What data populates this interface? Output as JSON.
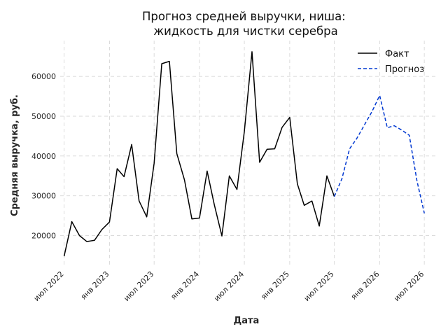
{
  "chart_data": {
    "type": "line",
    "title": "Прогноз средней выручки, ниша:\nжидкость для чистки серебра",
    "xlabel": "Дата",
    "ylabel": "Средняя выручка, руб.",
    "ylim": [
      12000,
      69000
    ],
    "xlim": [
      "2022-06-15",
      "2026-08-15"
    ],
    "x_ticks": [
      {
        "date": "2022-07-01",
        "label": "июл 2022"
      },
      {
        "date": "2023-01-01",
        "label": "янв 2023"
      },
      {
        "date": "2023-07-01",
        "label": "июл 2023"
      },
      {
        "date": "2024-01-01",
        "label": "янв 2024"
      },
      {
        "date": "2024-07-01",
        "label": "июл 2024"
      },
      {
        "date": "2025-01-01",
        "label": "янв 2025"
      },
      {
        "date": "2025-07-01",
        "label": "июл 2025"
      },
      {
        "date": "2026-01-01",
        "label": "янв 2026"
      },
      {
        "date": "2026-07-01",
        "label": "июл 2026"
      }
    ],
    "y_ticks": [
      20000,
      30000,
      40000,
      50000,
      60000
    ],
    "grid": true,
    "legend_position": "top-right",
    "series": [
      {
        "name": "Факт",
        "color": "#000000",
        "style": "solid",
        "points": [
          [
            "2022-07-01",
            14800
          ],
          [
            "2022-08-01",
            23500
          ],
          [
            "2022-09-01",
            20000
          ],
          [
            "2022-10-01",
            18500
          ],
          [
            "2022-11-01",
            18800
          ],
          [
            "2022-12-01",
            21500
          ],
          [
            "2023-01-01",
            23400
          ],
          [
            "2023-02-01",
            36800
          ],
          [
            "2023-03-01",
            34800
          ],
          [
            "2023-04-01",
            42900
          ],
          [
            "2023-05-01",
            28700
          ],
          [
            "2023-06-01",
            24700
          ],
          [
            "2023-07-01",
            38200
          ],
          [
            "2023-08-01",
            63200
          ],
          [
            "2023-09-01",
            63800
          ],
          [
            "2023-10-01",
            40600
          ],
          [
            "2023-11-01",
            34000
          ],
          [
            "2023-12-01",
            24200
          ],
          [
            "2024-01-01",
            24400
          ],
          [
            "2024-02-01",
            36200
          ],
          [
            "2024-03-01",
            27800
          ],
          [
            "2024-04-01",
            19900
          ],
          [
            "2024-05-01",
            35000
          ],
          [
            "2024-06-01",
            31600
          ],
          [
            "2024-07-01",
            46200
          ],
          [
            "2024-08-01",
            66200
          ],
          [
            "2024-09-01",
            38400
          ],
          [
            "2024-10-01",
            41700
          ],
          [
            "2024-11-01",
            41800
          ],
          [
            "2024-12-01",
            47200
          ],
          [
            "2025-01-01",
            49700
          ],
          [
            "2025-02-01",
            33000
          ],
          [
            "2025-03-01",
            27600
          ],
          [
            "2025-04-01",
            28700
          ],
          [
            "2025-05-01",
            22400
          ],
          [
            "2025-06-01",
            35000
          ],
          [
            "2025-07-01",
            29800
          ]
        ]
      },
      {
        "name": "Прогноз",
        "color": "#0038d1",
        "style": "dashed",
        "points": [
          [
            "2025-07-01",
            29800
          ],
          [
            "2025-08-01",
            34300
          ],
          [
            "2025-09-01",
            41800
          ],
          [
            "2025-10-01",
            44500
          ],
          [
            "2025-11-01",
            47900
          ],
          [
            "2025-12-01",
            51200
          ],
          [
            "2026-01-01",
            55200
          ],
          [
            "2026-02-01",
            47100
          ],
          [
            "2026-03-01",
            47600
          ],
          [
            "2026-04-01",
            46500
          ],
          [
            "2026-05-01",
            45200
          ],
          [
            "2026-06-01",
            33800
          ],
          [
            "2026-07-01",
            25600
          ]
        ]
      }
    ]
  }
}
